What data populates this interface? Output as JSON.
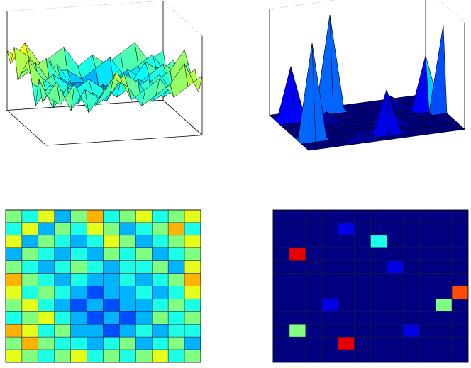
{
  "chart_data": [
    {
      "type": "surface",
      "colormap": "jet",
      "zlim": [
        0,
        10
      ],
      "z": [
        [
          5,
          4,
          6,
          3,
          5,
          7,
          4,
          5,
          6,
          4,
          5,
          6
        ],
        [
          4,
          6,
          3,
          5,
          4,
          6,
          5,
          3,
          4,
          5,
          7,
          4
        ],
        [
          6,
          3,
          5,
          4,
          3,
          4,
          6,
          5,
          3,
          4,
          5,
          6
        ],
        [
          3,
          5,
          4,
          3,
          4,
          3,
          5,
          4,
          5,
          3,
          4,
          5
        ],
        [
          5,
          4,
          3,
          4,
          5,
          4,
          3,
          4,
          4,
          5,
          3,
          6
        ],
        [
          7,
          5,
          4,
          3,
          4,
          3,
          3,
          4,
          3,
          4,
          5,
          7
        ],
        [
          6,
          4,
          5,
          4,
          3,
          2,
          3,
          3,
          4,
          3,
          4,
          6
        ],
        [
          5,
          6,
          4,
          3,
          2,
          3,
          2,
          3,
          3,
          4,
          5,
          4
        ],
        [
          4,
          5,
          6,
          4,
          3,
          2,
          3,
          2,
          3,
          5,
          4,
          5
        ],
        [
          7,
          6,
          4,
          5,
          3,
          3,
          2,
          3,
          4,
          3,
          4,
          4
        ],
        [
          5,
          7,
          5,
          4,
          4,
          3,
          4,
          5,
          3,
          4,
          5,
          3
        ],
        [
          6,
          5,
          4,
          5,
          6,
          4,
          5,
          4,
          5,
          6,
          4,
          5
        ]
      ]
    },
    {
      "type": "surface",
      "colormap": "jet",
      "zlim": [
        0,
        10
      ],
      "z": [
        [
          0,
          0,
          0,
          0,
          0,
          0,
          0,
          0,
          0,
          0,
          0,
          0
        ],
        [
          0,
          0,
          0,
          0,
          1,
          0,
          0,
          0,
          0,
          0,
          0,
          0
        ],
        [
          0,
          0,
          0,
          0,
          0,
          0,
          4,
          0,
          0,
          0,
          0,
          0
        ],
        [
          0,
          9,
          0,
          0,
          0,
          0,
          0,
          0,
          0,
          0,
          0,
          0
        ],
        [
          0,
          0,
          0,
          0,
          0,
          0,
          0,
          1,
          0,
          0,
          0,
          0
        ],
        [
          0,
          0,
          0,
          0,
          0,
          0,
          0,
          0,
          0,
          0,
          0,
          0
        ],
        [
          0,
          0,
          0,
          0,
          0,
          0,
          0,
          0,
          0,
          0,
          0,
          8
        ],
        [
          0,
          0,
          0,
          1,
          0,
          0,
          0,
          0,
          0,
          0,
          5,
          0
        ],
        [
          0,
          0,
          0,
          0,
          0,
          0,
          0,
          0,
          0,
          0,
          0,
          0
        ],
        [
          0,
          5,
          0,
          0,
          0,
          0,
          0,
          0,
          1,
          0,
          0,
          0
        ],
        [
          0,
          0,
          0,
          0,
          9,
          0,
          0,
          0,
          0,
          0,
          0,
          0
        ],
        [
          0,
          0,
          0,
          0,
          0,
          0,
          0,
          0,
          0,
          0,
          0,
          0
        ]
      ]
    },
    {
      "type": "heatmap",
      "colormap": "jet",
      "zlim": [
        0,
        10
      ],
      "z": [
        [
          5,
          4,
          6,
          3,
          5,
          7,
          4,
          5,
          6,
          4,
          5,
          6
        ],
        [
          4,
          6,
          3,
          5,
          4,
          6,
          5,
          3,
          4,
          5,
          7,
          4
        ],
        [
          6,
          3,
          5,
          4,
          3,
          4,
          6,
          5,
          3,
          4,
          5,
          6
        ],
        [
          3,
          5,
          4,
          3,
          4,
          3,
          5,
          4,
          5,
          3,
          4,
          5
        ],
        [
          5,
          4,
          3,
          4,
          5,
          4,
          3,
          4,
          4,
          5,
          3,
          6
        ],
        [
          7,
          5,
          4,
          3,
          4,
          3,
          3,
          4,
          3,
          4,
          5,
          7
        ],
        [
          6,
          4,
          5,
          4,
          3,
          2,
          3,
          3,
          4,
          3,
          4,
          6
        ],
        [
          5,
          6,
          4,
          3,
          2,
          3,
          2,
          3,
          3,
          4,
          5,
          4
        ],
        [
          4,
          5,
          6,
          4,
          3,
          2,
          3,
          2,
          3,
          5,
          4,
          5
        ],
        [
          7,
          6,
          4,
          5,
          3,
          3,
          2,
          3,
          4,
          3,
          4,
          4
        ],
        [
          5,
          7,
          5,
          4,
          4,
          3,
          4,
          5,
          3,
          4,
          5,
          3
        ],
        [
          6,
          5,
          4,
          5,
          6,
          4,
          5,
          4,
          5,
          6,
          4,
          5
        ]
      ]
    },
    {
      "type": "heatmap",
      "colormap": "jet",
      "zlim": [
        0,
        10
      ],
      "z": [
        [
          0,
          0,
          0,
          0,
          0,
          0,
          0,
          0,
          0,
          0,
          0,
          0
        ],
        [
          0,
          0,
          0,
          0,
          1,
          0,
          0,
          0,
          0,
          0,
          0,
          0
        ],
        [
          0,
          0,
          0,
          0,
          0,
          0,
          4,
          0,
          0,
          0,
          0,
          0
        ],
        [
          0,
          9,
          0,
          0,
          0,
          0,
          0,
          0,
          0,
          0,
          0,
          0
        ],
        [
          0,
          0,
          0,
          0,
          0,
          0,
          0,
          1,
          0,
          0,
          0,
          0
        ],
        [
          0,
          0,
          0,
          0,
          0,
          0,
          0,
          0,
          0,
          0,
          0,
          0
        ],
        [
          0,
          0,
          0,
          0,
          0,
          0,
          0,
          0,
          0,
          0,
          0,
          8
        ],
        [
          0,
          0,
          0,
          1,
          0,
          0,
          0,
          0,
          0,
          0,
          5,
          0
        ],
        [
          0,
          0,
          0,
          0,
          0,
          0,
          0,
          0,
          0,
          0,
          0,
          0
        ],
        [
          0,
          5,
          0,
          0,
          0,
          0,
          0,
          0,
          1,
          0,
          0,
          0
        ],
        [
          0,
          0,
          0,
          0,
          9,
          0,
          0,
          0,
          0,
          0,
          0,
          0
        ],
        [
          0,
          0,
          0,
          0,
          0,
          0,
          0,
          0,
          0,
          0,
          0,
          0
        ]
      ]
    }
  ]
}
